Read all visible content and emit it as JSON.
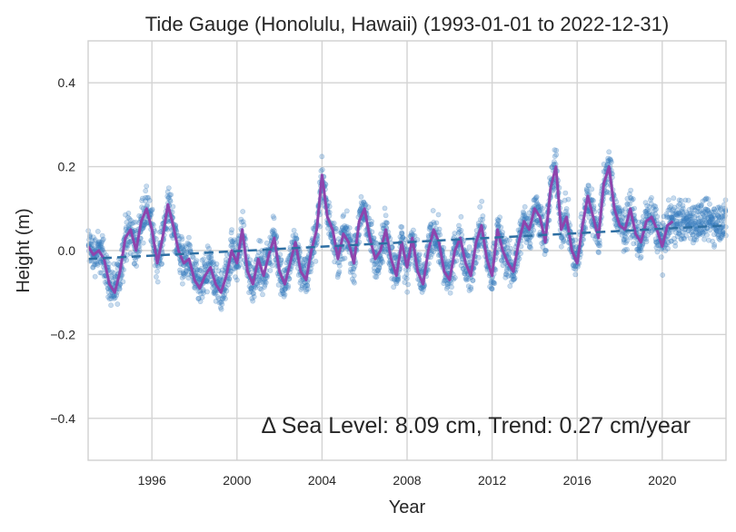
{
  "chart_data": {
    "type": "scatter",
    "title": "Tide Gauge (Honolulu, Hawaii) (1993-01-01 to 2022-12-31)",
    "xlabel": "Year",
    "ylabel": "Height (m)",
    "xlim": [
      1993.0,
      2023.0
    ],
    "ylim": [
      -0.5,
      0.5
    ],
    "x_ticks": [
      1996,
      2000,
      2004,
      2008,
      2012,
      2016,
      2020
    ],
    "y_ticks": [
      -0.4,
      -0.2,
      0.0,
      0.2,
      0.4
    ],
    "y_tick_labels": [
      "−0.4",
      "−0.2",
      "0.0",
      "0.2",
      "0.4"
    ],
    "grid": true,
    "annotation": "Δ Sea Level: 8.09 cm, Trend: 0.27 cm/year",
    "colors": {
      "points": "#3a7ebf",
      "smooth": "#8e44ad",
      "trend": "#2e6fa3"
    },
    "series": [
      {
        "kind": "daily_points",
        "x_start": 1993.0,
        "x_end": 2023.0,
        "step": 0.025,
        "approx_spread_m": 0.04
      },
      {
        "kind": "monthly_mean",
        "x_step": 0.25,
        "x_start": 1993.0,
        "values": [
          0.01,
          -0.01,
          0.0,
          -0.02,
          -0.08,
          -0.1,
          -0.05,
          0.03,
          0.05,
          0.0,
          0.07,
          0.1,
          0.05,
          -0.03,
          0.03,
          0.11,
          0.06,
          0.0,
          -0.03,
          -0.02,
          -0.07,
          -0.09,
          -0.06,
          -0.04,
          -0.08,
          -0.1,
          -0.06,
          0.0,
          -0.03,
          0.05,
          -0.05,
          -0.08,
          -0.02,
          -0.06,
          -0.01,
          0.03,
          -0.05,
          -0.08,
          -0.03,
          0.02,
          -0.05,
          -0.07,
          0.0,
          0.05,
          0.18,
          0.08,
          0.05,
          -0.02,
          0.04,
          0.02,
          -0.03,
          0.07,
          0.1,
          0.03,
          -0.02,
          0.0,
          0.05,
          -0.02,
          -0.06,
          0.02,
          -0.04,
          0.03,
          -0.05,
          -0.08,
          0.0,
          0.05,
          0.02,
          -0.05,
          -0.07,
          0.0,
          0.03,
          -0.03,
          -0.06,
          0.02,
          0.06,
          -0.02,
          -0.06,
          0.05,
          0.0,
          -0.03,
          -0.05,
          0.02,
          0.07,
          0.05,
          0.1,
          0.08,
          0.02,
          0.15,
          0.2,
          0.05,
          0.08,
          0.0,
          -0.03,
          0.06,
          0.13,
          0.08,
          0.03,
          0.16,
          0.2,
          0.1,
          0.06,
          0.05,
          0.1,
          0.04,
          0.02,
          0.07,
          0.08,
          0.05,
          0.01,
          0.06,
          0.07
        ]
      },
      {
        "kind": "linear_trend",
        "x": [
          1993.0,
          2023.0
        ],
        "y": [
          -0.02,
          0.06
        ]
      }
    ]
  }
}
